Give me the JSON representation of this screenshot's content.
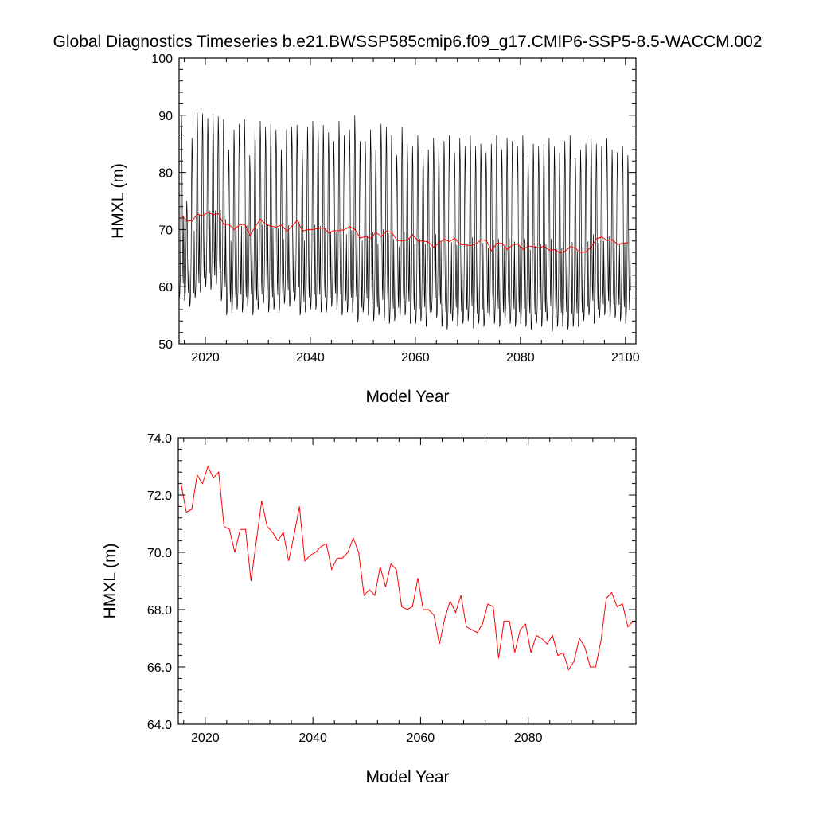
{
  "figure": {
    "title": "Global Diagnostics Timeseries b.e21.BWSSP585cmip6.f09_g17.CMIP6-SSP5-8.5-WACCM.002"
  },
  "colors": {
    "monthly_line": "#000000",
    "annual_line": "#ff0000",
    "axis": "#000000"
  },
  "chart_data": [
    {
      "type": "line",
      "title": "",
      "xlabel": "Model Year",
      "ylabel": "HMXL (m)",
      "xlim": [
        2015,
        2102
      ],
      "ylim": [
        50,
        100
      ],
      "x_ticks": [
        "2020",
        "2040",
        "2060",
        "2080",
        "2100"
      ],
      "y_ticks": [
        "50",
        "60",
        "70",
        "80",
        "90",
        "100"
      ],
      "grid": false,
      "legend": "none",
      "series": [
        {
          "kind": "monthly",
          "color": "#000000",
          "start_year": 2015,
          "annual_max": [
            90.0,
            75.0,
            86.0,
            90.5,
            90.3,
            89.5,
            90.2,
            89.8,
            89.3,
            84.0,
            87.5,
            88.5,
            89.3,
            83.0,
            88.5,
            89.0,
            88.0,
            88.5,
            87.5,
            84.0,
            87.5,
            88.0,
            88.3,
            84.0,
            88.0,
            89.0,
            88.5,
            88.3,
            87.0,
            85.5,
            89.0,
            86.5,
            87.5,
            90.0,
            85.5,
            85.5,
            87.5,
            84.0,
            88.5,
            88.0,
            86.5,
            83.0,
            88.0,
            85.0,
            84.5,
            86.5,
            84.0,
            84.0,
            86.0,
            84.5,
            85.5,
            86.5,
            83.5,
            86.0,
            84.5,
            86.5,
            84.5,
            85.0,
            83.5,
            85.0,
            86.5,
            84.0,
            86.0,
            85.5,
            84.5,
            86.5,
            83.0,
            85.0,
            84.5,
            85.0,
            86.0,
            84.5,
            83.5,
            85.5,
            86.5,
            82.5,
            84.0,
            85.0,
            86.5,
            85.0,
            84.5,
            86.0,
            84.0,
            83.5,
            84.5,
            83.0
          ],
          "annual_min": [
            58.0,
            57.5,
            56.5,
            58.0,
            59.0,
            60.0,
            59.5,
            60.0,
            57.5,
            55.0,
            55.5,
            56.0,
            55.5,
            56.5,
            55.0,
            56.0,
            57.0,
            55.5,
            56.0,
            55.5,
            57.0,
            56.5,
            57.5,
            55.0,
            55.5,
            56.0,
            56.0,
            55.5,
            55.5,
            56.5,
            56.0,
            55.0,
            55.5,
            55.5,
            53.8,
            55.5,
            55.0,
            54.0,
            55.0,
            54.0,
            53.5,
            54.0,
            54.5,
            55.0,
            53.5,
            53.5,
            54.0,
            53.0,
            55.5,
            54.5,
            53.0,
            52.5,
            54.0,
            53.0,
            53.5,
            54.0,
            52.7,
            53.5,
            53.0,
            54.5,
            53.5,
            53.0,
            54.0,
            53.5,
            53.0,
            53.5,
            53.0,
            52.5,
            53.5,
            53.0,
            54.0,
            52.0,
            53.0,
            53.0,
            52.5,
            53.0,
            53.0,
            54.0,
            55.0,
            53.5,
            54.5,
            55.0,
            54.5,
            54.5,
            54.0,
            53.5
          ]
        },
        {
          "kind": "annual_mean",
          "color": "#ff0000",
          "start_year": 2015,
          "values": [
            72.4,
            71.5,
            71.5,
            72.7,
            72.4,
            73.0,
            72.6,
            72.8,
            70.9,
            70.9,
            70.0,
            70.8,
            70.9,
            69.0,
            70.5,
            71.8,
            70.9,
            70.6,
            70.4,
            70.8,
            69.7,
            70.6,
            71.6,
            69.7,
            70.0,
            70.0,
            70.2,
            70.3,
            69.4,
            69.8,
            69.8,
            70.0,
            70.5,
            70.0,
            68.5,
            68.8,
            68.5,
            69.5,
            68.8,
            69.7,
            69.5,
            68.1,
            68.0,
            68.2,
            69.1,
            68.0,
            68.0,
            67.8,
            66.9,
            67.7,
            68.3,
            67.9,
            68.5,
            67.4,
            67.3,
            67.2,
            67.5,
            68.2,
            68.1,
            66.3,
            67.6,
            67.6,
            66.5,
            67.3,
            67.5,
            66.5,
            67.1,
            67.0,
            66.8,
            67.1,
            66.4,
            66.5,
            65.9,
            66.2,
            67.0,
            66.7,
            66.0,
            66.1,
            67.0,
            68.4,
            68.7,
            68.1,
            68.2,
            67.4,
            67.6,
            67.7
          ]
        }
      ]
    },
    {
      "type": "line",
      "title": "",
      "xlabel": "Model Year",
      "ylabel": "HMXL (m)",
      "xlim": [
        2015,
        2100
      ],
      "ylim": [
        64,
        74
      ],
      "x_ticks": [
        "2020",
        "2040",
        "2060",
        "2080"
      ],
      "y_ticks": [
        "64.0",
        "66.0",
        "68.0",
        "70.0",
        "72.0",
        "74.0"
      ],
      "grid": false,
      "legend": "none",
      "series": [
        {
          "kind": "annual_mean",
          "color": "#ff0000",
          "start_year": 2015,
          "values": [
            72.4,
            71.4,
            71.5,
            72.7,
            72.4,
            73.0,
            72.6,
            72.8,
            70.9,
            70.8,
            70.0,
            70.8,
            70.8,
            69.0,
            70.4,
            71.8,
            70.9,
            70.7,
            70.4,
            70.7,
            69.7,
            70.6,
            71.6,
            69.7,
            69.9,
            70.0,
            70.2,
            70.3,
            69.4,
            69.8,
            69.8,
            70.0,
            70.5,
            70.0,
            68.5,
            68.7,
            68.5,
            69.5,
            68.8,
            69.6,
            69.4,
            68.1,
            68.0,
            68.1,
            69.1,
            68.0,
            68.0,
            67.8,
            66.8,
            67.7,
            68.3,
            67.9,
            68.5,
            67.4,
            67.3,
            67.2,
            67.5,
            68.2,
            68.1,
            66.3,
            67.6,
            67.6,
            66.5,
            67.3,
            67.5,
            66.5,
            67.1,
            67.0,
            66.8,
            67.1,
            66.4,
            66.5,
            65.9,
            66.2,
            67.0,
            66.7,
            66.0,
            66.0,
            66.9,
            68.4,
            68.6,
            68.1,
            68.2,
            67.4,
            67.6
          ]
        }
      ]
    }
  ]
}
